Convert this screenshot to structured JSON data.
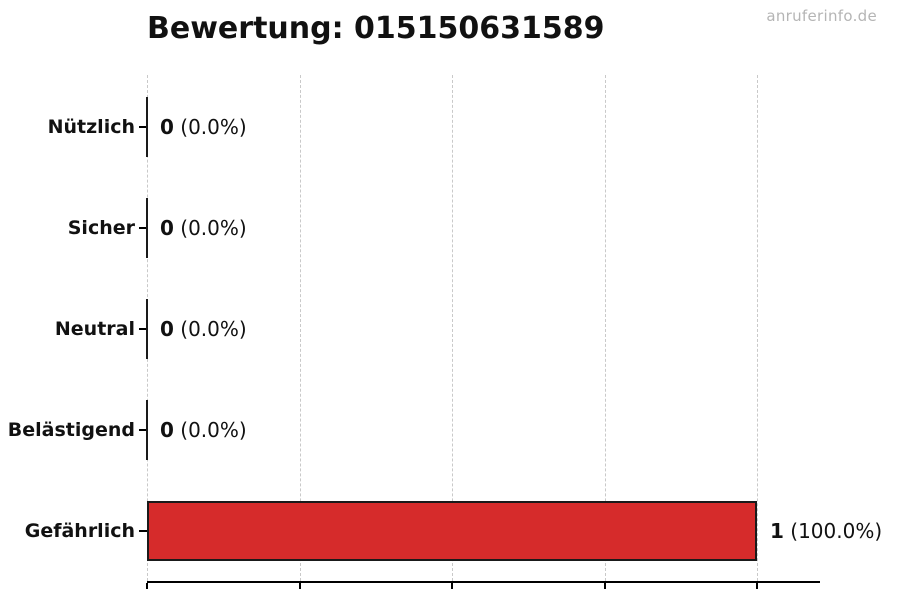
{
  "watermark": "anruferinfo.de",
  "colors": {
    "bar_fill": "#d62b2b",
    "bar_edge": "#1a1a1a",
    "grid": "#c9c9c9",
    "axis": "#000000",
    "text": "#111111",
    "watermark": "#b5b5b5"
  },
  "chart_data": {
    "type": "bar",
    "orientation": "horizontal",
    "title": "Bewertung: 015150631589",
    "categories": [
      "Nützlich",
      "Sicher",
      "Neutral",
      "Belästigend",
      "Gefährlich"
    ],
    "values": [
      0,
      0,
      0,
      0,
      1
    ],
    "value_labels": [
      {
        "count": "0",
        "pct": "(0.0%)"
      },
      {
        "count": "0",
        "pct": "(0.0%)"
      },
      {
        "count": "0",
        "pct": "(0.0%)"
      },
      {
        "count": "0",
        "pct": "(0.0%)"
      },
      {
        "count": "1",
        "pct": "(100.0%)"
      }
    ],
    "bar_colors": [
      "none",
      "none",
      "none",
      "none",
      "#d62b2b"
    ],
    "xlim": [
      0,
      1.1
    ],
    "gridline_values": [
      0,
      0.25,
      0.5,
      0.75,
      1.0
    ],
    "grid": true,
    "legend": false,
    "xlabel": "",
    "ylabel": ""
  }
}
